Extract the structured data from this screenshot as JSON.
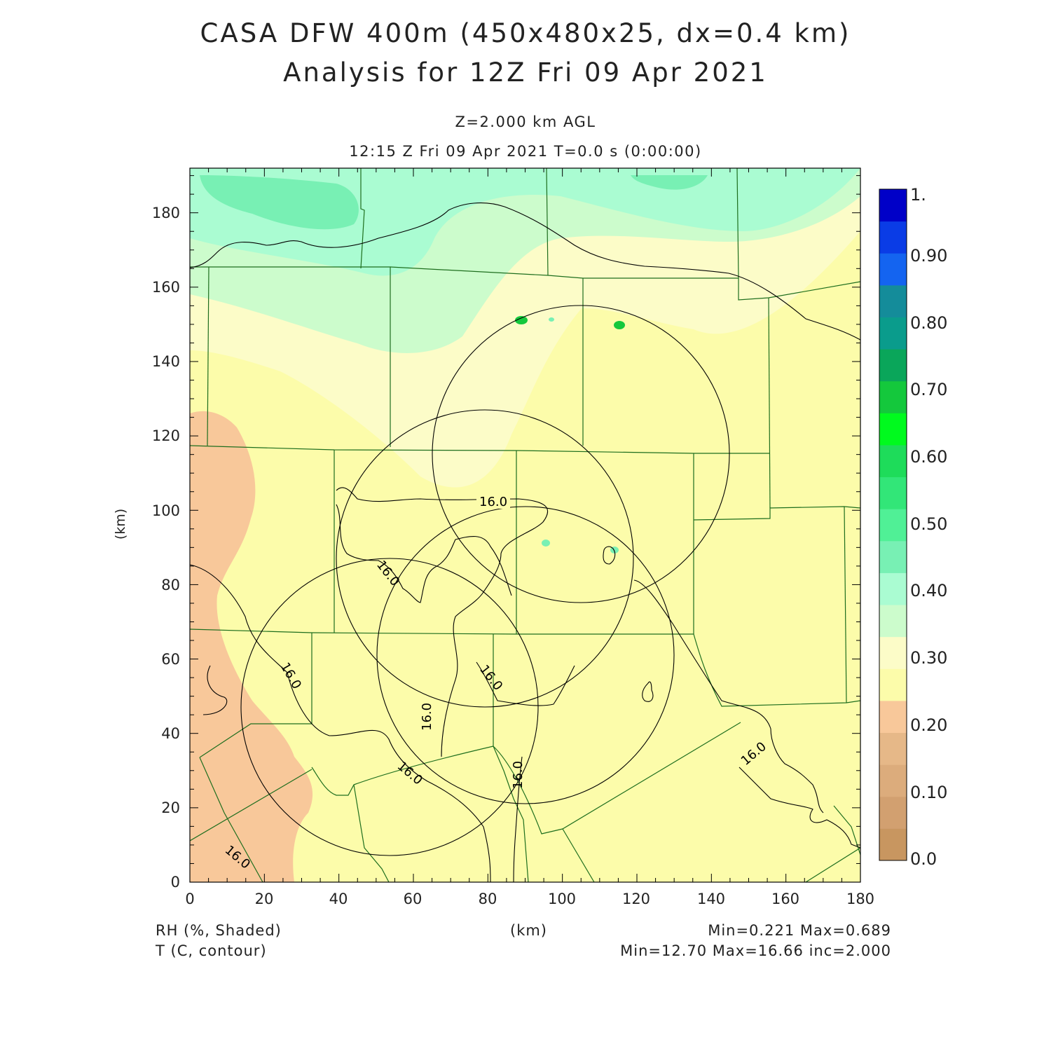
{
  "title": {
    "line1": "CASA DFW 400m (450x480x25, dx=0.4 km)",
    "line2": "Analysis for 12Z Fri 09 Apr 2021"
  },
  "subtitle": {
    "level": "Z=2.000 km AGL",
    "time": "12:15 Z Fri 09 Apr 2021    T=0.0 s (0:00:00)"
  },
  "axes": {
    "xlabel": "(km)",
    "ylabel": "(km)",
    "x_ticks": [
      "0",
      "20",
      "40",
      "60",
      "80",
      "100",
      "120",
      "140",
      "160",
      "180"
    ],
    "y_ticks": [
      "0",
      "20",
      "40",
      "60",
      "80",
      "100",
      "120",
      "140",
      "160",
      "180"
    ]
  },
  "colorbar": {
    "labels": [
      "1.",
      "0.90",
      "0.80",
      "0.70",
      "0.60",
      "0.50",
      "0.40",
      "0.30",
      "0.20",
      "0.10",
      "0.0"
    ],
    "colors": [
      "#c89660",
      "#d2a070",
      "#dcac7c",
      "#e6b888",
      "#f8c89a",
      "#fcfcaa",
      "#fcfcc8",
      "#ccfccc",
      "#aafcd2",
      "#78f0b4",
      "#50f096",
      "#32e678",
      "#1edc5a",
      "#00fa1e",
      "#14c83c",
      "#0aa65a",
      "#0a9c8c",
      "#148c9a",
      "#1464f0",
      "#0a3ce6",
      "#0000c8"
    ]
  },
  "footer": {
    "left1": "RH (%, Shaded)",
    "left2": "T (C, contour)",
    "center": "(km)",
    "right1": "Min=0.221 Max=0.689",
    "right2": "Min=12.70 Max=16.66 inc=2.000"
  },
  "contour_labels": [
    "16.0",
    "16.0",
    "16.0",
    "16.0",
    "16.0",
    "16.0",
    "16.0"
  ],
  "chart_data": {
    "type": "heatmap",
    "title": "CASA DFW 400m (450x480x25, dx=0.4 km)",
    "xlabel": "(km)",
    "ylabel": "(km)",
    "xlim": [
      0,
      180
    ],
    "ylim": [
      0,
      192
    ],
    "fields": [
      {
        "name": "RH (%, Shaded)",
        "min": 0.221,
        "max": 0.689
      },
      {
        "name": "T (C, contour)",
        "min": 12.7,
        "max": 16.66,
        "inc": 2.0
      }
    ],
    "contour_level": 16.0,
    "radar_range_rings": [
      {
        "center_km": [
          105,
          116
        ],
        "radius_km": 40
      },
      {
        "center_km": [
          79,
          88
        ],
        "radius_km": 40
      },
      {
        "center_km": [
          85,
          62
        ],
        "radius_km": 40
      },
      {
        "center_km": [
          55,
          49
        ],
        "radius_km": 40
      }
    ]
  }
}
